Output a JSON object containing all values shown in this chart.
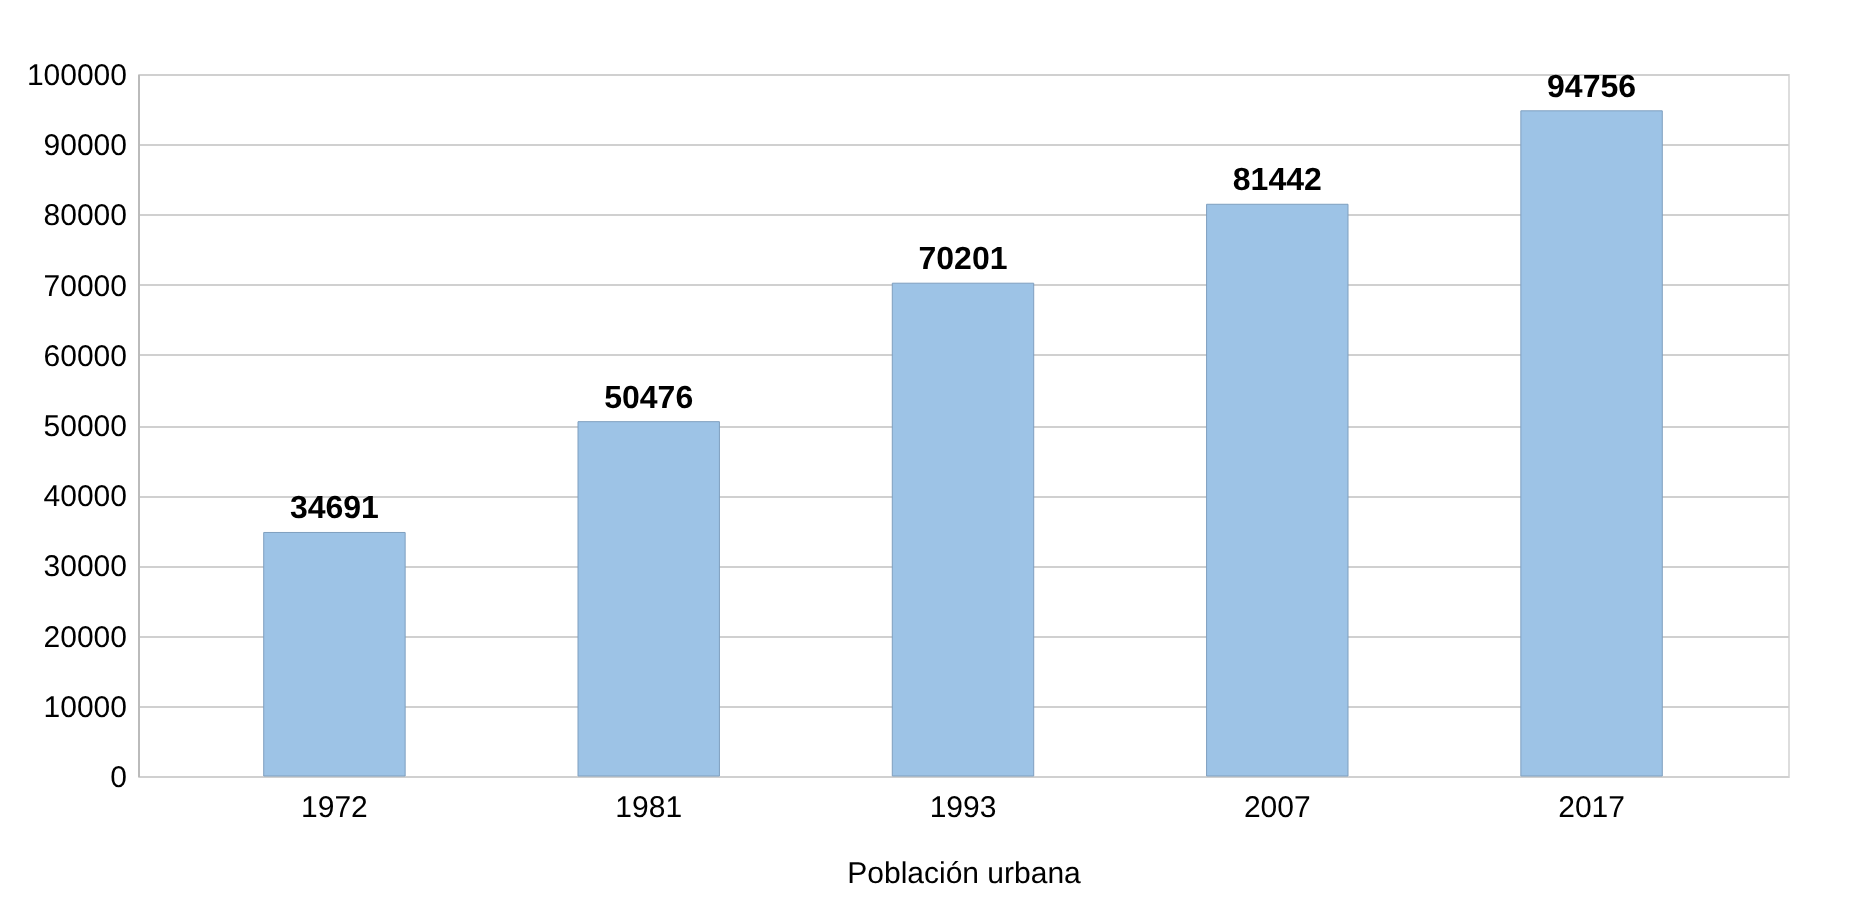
{
  "chart_data": {
    "type": "bar",
    "xlabel": "Población urbana",
    "categories": [
      "1972",
      "1981",
      "1993",
      "2007",
      "2017"
    ],
    "values": [
      34691,
      50476,
      70201,
      81442,
      94756
    ],
    "color": "#9dc3e6",
    "ylim": [
      0,
      100000
    ],
    "yticks": [
      0,
      10000,
      20000,
      30000,
      40000,
      50000,
      60000,
      70000,
      80000,
      90000,
      100000
    ],
    "grid": "y",
    "data_labels": true
  }
}
